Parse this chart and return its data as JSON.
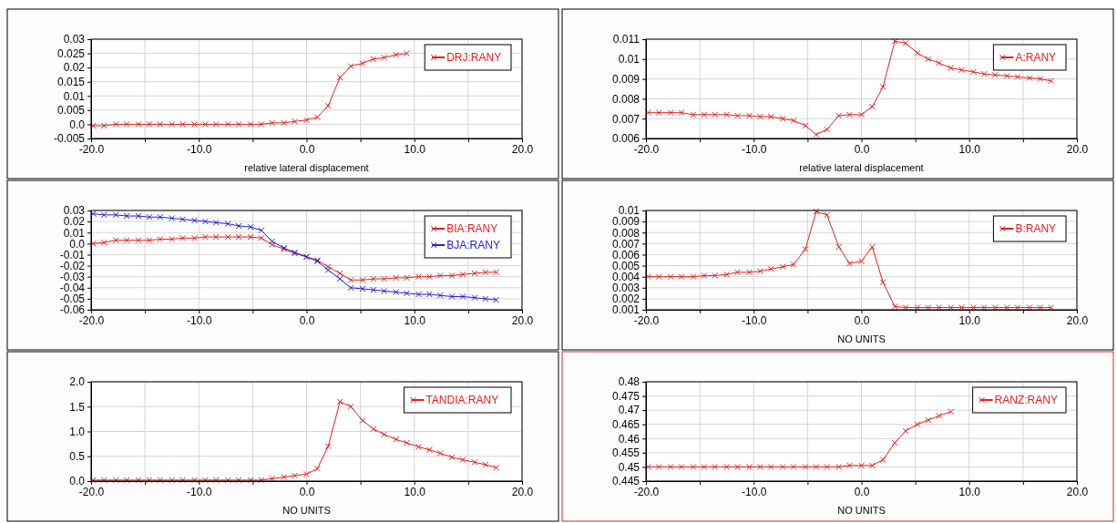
{
  "chart_data": [
    {
      "type": "line",
      "xlabel": "relative lateral displacement",
      "marker": "cross",
      "grid": true,
      "legend": "top right",
      "x": [
        -19.8,
        -18.8,
        -17.7,
        -16.7,
        -15.6,
        -14.6,
        -13.6,
        -12.5,
        -11.5,
        -10.4,
        -9.4,
        -8.4,
        -7.3,
        -6.3,
        -5.2,
        -4.2,
        -3.2,
        -2.1,
        -1.1,
        0,
        1,
        2,
        3.1,
        4.1,
        5.2,
        6.2,
        7.2,
        8.3,
        9.3
      ],
      "xlim": [
        -20,
        20
      ],
      "xticks": [
        {
          "value": -20,
          "label": "-20.0"
        },
        {
          "value": -15,
          "label": null
        },
        {
          "value": -10,
          "label": "-10.0"
        },
        {
          "value": -5,
          "label": null
        },
        {
          "value": 0,
          "label": "0.0"
        },
        {
          "value": 5,
          "label": null
        },
        {
          "value": 10,
          "label": "10.0"
        },
        {
          "value": 15,
          "label": null
        },
        {
          "value": 20,
          "label": "20.0"
        }
      ],
      "ylim": [
        -0.005,
        0.03
      ],
      "yticks": [
        -0.005,
        {
          "value": 0,
          "label": "0.0"
        },
        0.005,
        0.01,
        0.015,
        0.02,
        0.025,
        0.03
      ],
      "series": [
        {
          "name": "DRJ:RANY",
          "color": "#e02020",
          "values": [
            -0.0005,
            -0.0005,
            0,
            0,
            0,
            0,
            0,
            0,
            0,
            0,
            0,
            0,
            0,
            0,
            0,
            0,
            0.0005,
            0.0005,
            0.001,
            0.0015,
            0.0025,
            0.0065,
            0.0165,
            0.0205,
            0.0215,
            0.023,
            0.0235,
            0.0245,
            0.025
          ]
        }
      ]
    },
    {
      "type": "line",
      "xlabel": "relative lateral displacement",
      "marker": "cross",
      "grid": true,
      "legend": "top right",
      "x": [
        -19.8,
        -18.8,
        -17.7,
        -16.7,
        -15.6,
        -14.6,
        -13.6,
        -12.5,
        -11.5,
        -10.4,
        -9.4,
        -8.4,
        -7.3,
        -6.3,
        -5.2,
        -4.2,
        -3.2,
        -2.1,
        -1.1,
        0,
        1,
        2,
        3.1,
        4.1,
        5.2,
        6.2,
        7.2,
        8.3,
        9.3,
        10.4,
        11.4,
        12.4,
        13.5,
        14.5,
        15.6,
        16.6,
        17.6
      ],
      "xlim": [
        -20,
        20
      ],
      "xticks": [
        {
          "value": -20,
          "label": "-20.0"
        },
        {
          "value": -15,
          "label": null
        },
        {
          "value": -10,
          "label": "-10.0"
        },
        {
          "value": -5,
          "label": null
        },
        {
          "value": 0,
          "label": "0.0"
        },
        {
          "value": 5,
          "label": null
        },
        {
          "value": 10,
          "label": "10.0"
        },
        {
          "value": 15,
          "label": null
        },
        {
          "value": 20,
          "label": "20.0"
        }
      ],
      "ylim": [
        0.006,
        0.011
      ],
      "yticks": [
        0.006,
        0.007,
        0.008,
        0.009,
        0.01,
        0.011
      ],
      "series": [
        {
          "name": "A:RANY",
          "color": "#e02020",
          "values": [
            0.0073,
            0.0073,
            0.0073,
            0.0073,
            0.0072,
            0.0072,
            0.0072,
            0.0072,
            0.00715,
            0.00715,
            0.0071,
            0.0071,
            0.007,
            0.0069,
            0.00665,
            0.0062,
            0.00645,
            0.00715,
            0.0072,
            0.0072,
            0.0076,
            0.0086,
            0.0109,
            0.0108,
            0.0103,
            0.01,
            0.0098,
            0.00955,
            0.00945,
            0.00935,
            0.00925,
            0.0092,
            0.00915,
            0.0091,
            0.00905,
            0.009,
            0.0089
          ]
        }
      ]
    },
    {
      "type": "line",
      "marker": "cross",
      "grid": true,
      "legend": "top right",
      "x": [
        -19.8,
        -18.8,
        -17.7,
        -16.7,
        -15.6,
        -14.6,
        -13.6,
        -12.5,
        -11.5,
        -10.4,
        -9.4,
        -8.4,
        -7.3,
        -6.3,
        -5.2,
        -4.2,
        -3.2,
        -2.1,
        -1.1,
        0,
        1,
        2,
        3.1,
        4.1,
        5.2,
        6.2,
        7.2,
        8.3,
        9.3,
        10.4,
        11.4,
        12.4,
        13.5,
        14.5,
        15.6,
        16.6,
        17.6
      ],
      "xlim": [
        -20,
        20
      ],
      "xticks": [
        {
          "value": -20,
          "label": "-20.0"
        },
        {
          "value": -15,
          "label": null
        },
        {
          "value": -10,
          "label": "-10.0"
        },
        {
          "value": -5,
          "label": null
        },
        {
          "value": 0,
          "label": "0.0"
        },
        {
          "value": 5,
          "label": null
        },
        {
          "value": 10,
          "label": "10.0"
        },
        {
          "value": 15,
          "label": null
        },
        {
          "value": 20,
          "label": "20.0"
        }
      ],
      "ylim": [
        -0.06,
        0.03
      ],
      "yticks": [
        -0.06,
        -0.05,
        -0.04,
        -0.03,
        -0.02,
        -0.01,
        {
          "value": 0,
          "label": "0.0"
        },
        0.01,
        0.02,
        0.03
      ],
      "series": [
        {
          "name": "BIA:RANY",
          "color": "#e02020",
          "values": [
            0.0,
            0.001,
            0.003,
            0.003,
            0.003,
            0.003,
            0.004,
            0.004,
            0.005,
            0.005,
            0.006,
            0.006,
            0.006,
            0.006,
            0.006,
            0.005,
            -0.001,
            -0.005,
            -0.009,
            -0.012,
            -0.015,
            -0.021,
            -0.027,
            -0.033,
            -0.033,
            -0.032,
            -0.032,
            -0.031,
            -0.031,
            -0.03,
            -0.03,
            -0.029,
            -0.029,
            -0.028,
            -0.027,
            -0.026,
            -0.026
          ]
        },
        {
          "name": "BJA:RANY",
          "color": "#2020d0",
          "values": [
            0.027,
            0.026,
            0.026,
            0.025,
            0.025,
            0.024,
            0.024,
            0.023,
            0.022,
            0.021,
            0.02,
            0.019,
            0.018,
            0.016,
            0.015,
            0.012,
            0.002,
            -0.004,
            -0.008,
            -0.012,
            -0.016,
            -0.024,
            -0.032,
            -0.04,
            -0.041,
            -0.042,
            -0.043,
            -0.044,
            -0.045,
            -0.046,
            -0.046,
            -0.047,
            -0.048,
            -0.048,
            -0.049,
            -0.05,
            -0.051
          ]
        }
      ]
    },
    {
      "type": "line",
      "xlabel": "NO UNITS",
      "marker": "cross",
      "grid": true,
      "legend": "top right",
      "x": [
        -19.8,
        -18.8,
        -17.7,
        -16.7,
        -15.6,
        -14.6,
        -13.6,
        -12.5,
        -11.5,
        -10.4,
        -9.4,
        -8.4,
        -7.3,
        -6.3,
        -5.2,
        -4.2,
        -3.2,
        -2.1,
        -1.1,
        0,
        1,
        2,
        3.1,
        4.1,
        5.2,
        6.2,
        7.2,
        8.3,
        9.3,
        10.4,
        11.4,
        12.4,
        13.5,
        14.5,
        15.6,
        16.6,
        17.6
      ],
      "xlim": [
        -20,
        20
      ],
      "xticks": [
        {
          "value": -20,
          "label": "-20.0"
        },
        {
          "value": -15,
          "label": null
        },
        {
          "value": -10,
          "label": "-10.0"
        },
        {
          "value": -5,
          "label": null
        },
        {
          "value": 0,
          "label": "0.0"
        },
        {
          "value": 5,
          "label": null
        },
        {
          "value": 10,
          "label": "10.0"
        },
        {
          "value": 15,
          "label": null
        },
        {
          "value": 20,
          "label": "20.0"
        }
      ],
      "ylim": [
        0.001,
        0.01
      ],
      "yticks": [
        0.001,
        0.002,
        0.003,
        0.004,
        0.005,
        0.006,
        0.007,
        0.008,
        0.009,
        0.01
      ],
      "series": [
        {
          "name": "B:RANY",
          "color": "#e02020",
          "values": [
            0.004,
            0.004,
            0.004,
            0.004,
            0.004,
            0.0041,
            0.0041,
            0.0042,
            0.0044,
            0.0044,
            0.0045,
            0.0047,
            0.0049,
            0.0051,
            0.0065,
            0.0099,
            0.0096,
            0.0067,
            0.0052,
            0.0054,
            0.0067,
            0.0035,
            0.0013,
            0.0012,
            0.0012,
            0.0012,
            0.0012,
            0.0012,
            0.0012,
            0.0012,
            0.0012,
            0.0012,
            0.0012,
            0.0012,
            0.0012,
            0.0012,
            0.0012
          ]
        }
      ]
    },
    {
      "type": "line",
      "xlabel": "NO UNITS",
      "marker": "cross",
      "grid": true,
      "legend": "top right",
      "x": [
        -19.8,
        -18.8,
        -17.7,
        -16.7,
        -15.6,
        -14.6,
        -13.6,
        -12.5,
        -11.5,
        -10.4,
        -9.4,
        -8.4,
        -7.3,
        -6.3,
        -5.2,
        -4.2,
        -3.2,
        -2.1,
        -1.1,
        0,
        1,
        2,
        3.1,
        4.1,
        5.2,
        6.2,
        7.2,
        8.3,
        9.3,
        10.4,
        11.4,
        12.4,
        13.5,
        14.5,
        15.6,
        16.6,
        17.6
      ],
      "xlim": [
        -20,
        20
      ],
      "xticks": [
        {
          "value": -20,
          "label": "-20.0"
        },
        {
          "value": -15,
          "label": null
        },
        {
          "value": -10,
          "label": "-10.0"
        },
        {
          "value": -5,
          "label": null
        },
        {
          "value": 0,
          "label": "0.0"
        },
        {
          "value": 5,
          "label": null
        },
        {
          "value": 10,
          "label": "10.0"
        },
        {
          "value": 15,
          "label": null
        },
        {
          "value": 20,
          "label": "20.0"
        }
      ],
      "ylim": [
        0,
        2
      ],
      "yticks": [
        {
          "value": 0,
          "label": "0.0"
        },
        0.5,
        {
          "value": 1,
          "label": "1.0"
        },
        1.5,
        {
          "value": 2,
          "label": "2.0"
        }
      ],
      "series": [
        {
          "name": "TANDIA:RANY",
          "color": "#e02020",
          "values": [
            0.02,
            0.02,
            0.02,
            0.02,
            0.02,
            0.02,
            0.02,
            0.02,
            0.02,
            0.02,
            0.02,
            0.02,
            0.02,
            0.02,
            0.02,
            0.02,
            0.05,
            0.08,
            0.11,
            0.14,
            0.25,
            0.7,
            1.6,
            1.5,
            1.22,
            1.05,
            0.94,
            0.84,
            0.77,
            0.69,
            0.63,
            0.56,
            0.48,
            0.43,
            0.38,
            0.33,
            0.27
          ]
        }
      ]
    },
    {
      "type": "line",
      "xlabel": "NO UNITS",
      "marker": "cross",
      "grid": true,
      "legend": "top right",
      "x": [
        -19.8,
        -18.8,
        -17.7,
        -16.7,
        -15.6,
        -14.6,
        -13.6,
        -12.5,
        -11.5,
        -10.4,
        -9.4,
        -8.4,
        -7.3,
        -6.3,
        -5.2,
        -4.2,
        -3.2,
        -2.1,
        -1.1,
        0,
        1,
        2,
        3.1,
        4.1,
        5.2,
        6.2,
        7.2,
        8.3
      ],
      "xlim": [
        -20,
        20
      ],
      "xticks": [
        {
          "value": -20,
          "label": "-20.0"
        },
        {
          "value": -15,
          "label": null
        },
        {
          "value": -10,
          "label": "-10.0"
        },
        {
          "value": -5,
          "label": null
        },
        {
          "value": 0,
          "label": "0.0"
        },
        {
          "value": 5,
          "label": null
        },
        {
          "value": 10,
          "label": "10.0"
        },
        {
          "value": 15,
          "label": null
        },
        {
          "value": 20,
          "label": "20.0"
        }
      ],
      "ylim": [
        0.445,
        0.48
      ],
      "yticks": [
        0.445,
        0.45,
        0.455,
        0.46,
        0.465,
        0.47,
        0.475,
        0.48
      ],
      "series": [
        {
          "name": "RANZ:RANY",
          "color": "#e02020",
          "values": [
            0.45,
            0.45,
            0.45,
            0.45,
            0.45,
            0.45,
            0.45,
            0.45,
            0.45,
            0.45,
            0.45,
            0.45,
            0.45,
            0.45,
            0.45,
            0.45,
            0.45,
            0.45,
            0.4505,
            0.4505,
            0.4505,
            0.4525,
            0.4585,
            0.4627,
            0.465,
            0.4665,
            0.468,
            0.4695
          ]
        }
      ]
    }
  ]
}
